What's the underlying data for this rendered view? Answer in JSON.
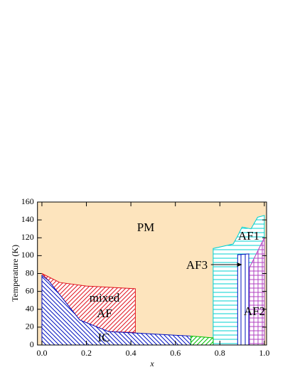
{
  "chart_data": {
    "type": "phase-diagram",
    "x_label": "x",
    "y_label": "Temperature (K)",
    "xlim": [
      -0.02,
      1.01
    ],
    "ylim": [
      0,
      160
    ],
    "xticks": [
      {
        "value": 0,
        "label": "0.0"
      },
      {
        "value": 0.2,
        "label": "0.2"
      },
      {
        "value": 0.4,
        "label": "0.4"
      },
      {
        "value": 0.6,
        "label": "0.6"
      },
      {
        "value": 0.8,
        "label": "0.8"
      },
      {
        "value": 1,
        "label": "1.0"
      }
    ],
    "yticks": [
      0,
      20,
      40,
      60,
      80,
      100,
      120,
      140,
      160
    ],
    "regions": [
      {
        "label": "PM",
        "color": "#fde4bd",
        "hatch": "solid",
        "x": [
          -0.02,
          1.01,
          1.01,
          -0.02
        ],
        "y": [
          0,
          0,
          160,
          160
        ]
      },
      {
        "label": "AF1",
        "color": "#00d0d0",
        "hatch": "horizontal",
        "x": [
          0.77,
          0.77,
          0.86,
          0.88,
          0.9,
          0.94,
          0.97,
          1.0,
          1.0
        ],
        "y": [
          0,
          108,
          113,
          122,
          132,
          130,
          143,
          145,
          0
        ]
      },
      {
        "label": [
          "mixed",
          "AF"
        ],
        "color": "#e0141e",
        "hatch": "diag-up",
        "x": [
          0,
          0.08,
          0.2,
          0.42,
          0.42,
          0.3,
          0.17,
          0.03
        ],
        "y": [
          80,
          70,
          66,
          63,
          14,
          15,
          28,
          72
        ]
      },
      {
        "label": "IC",
        "color": "#0010c0",
        "hatch": "diag-down",
        "x": [
          0,
          0,
          0.03,
          0.17,
          0.3,
          0.45,
          0.67,
          0.67
        ],
        "y": [
          0,
          78,
          72,
          28,
          15,
          13,
          10,
          0
        ]
      },
      {
        "color": "#00c000",
        "hatch": "diag-up",
        "x": [
          0.67,
          0.67,
          0.77,
          0.77
        ],
        "y": [
          0,
          10,
          8,
          0
        ]
      },
      {
        "label": "AF2",
        "color": "#b040c0",
        "hatch": "grid",
        "x": [
          0.92,
          0.92,
          0.95,
          1.0,
          1.0
        ],
        "y": [
          0,
          80,
          95,
          120,
          0
        ]
      },
      {
        "label": "AF3",
        "color": "#0010c0",
        "hatch": "vertical",
        "x": [
          0.88,
          0.88,
          0.93,
          0.93
        ],
        "y": [
          0,
          101,
          102,
          0
        ]
      }
    ],
    "arrow": {
      "x": [
        0.76,
        0.9
      ],
      "y": [
        90,
        90
      ]
    }
  }
}
